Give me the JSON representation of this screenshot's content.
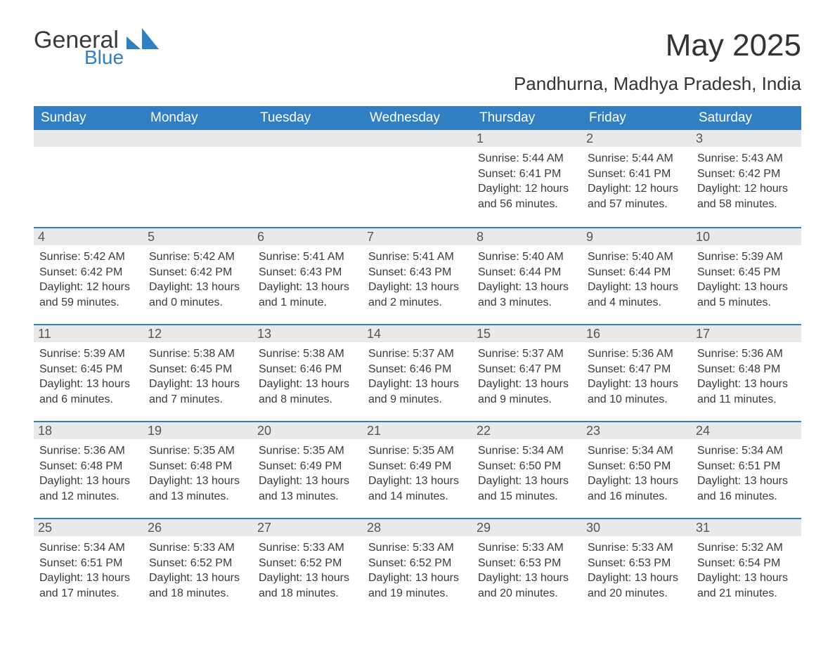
{
  "brand": {
    "word1": "General",
    "word2": "Blue"
  },
  "title": "May 2025",
  "location": "Pandhurna, Madhya Pradesh, India",
  "colors": {
    "header_bg": "#2f7fc2",
    "header_text": "#ffffff",
    "daynum_bg": "#e9e9e9",
    "daynum_text": "#555555",
    "body_text": "#3a3a3a",
    "divider": "#2f7fc2",
    "page_bg": "#ffffff",
    "logo_blue": "#2f7fc2",
    "logo_gray": "#3a3a3a"
  },
  "typography": {
    "title_fontsize": 44,
    "location_fontsize": 26,
    "dow_fontsize": 19,
    "daynum_fontsize": 18,
    "body_fontsize": 16,
    "font_family": "Arial"
  },
  "layout": {
    "columns": 7,
    "rows": 5,
    "leading_blanks": 4,
    "cell_min_height": 138
  },
  "dow": [
    "Sunday",
    "Monday",
    "Tuesday",
    "Wednesday",
    "Thursday",
    "Friday",
    "Saturday"
  ],
  "days": [
    {
      "n": "1",
      "sunrise": "Sunrise: 5:44 AM",
      "sunset": "Sunset: 6:41 PM",
      "daylight": "Daylight: 12 hours and 56 minutes."
    },
    {
      "n": "2",
      "sunrise": "Sunrise: 5:44 AM",
      "sunset": "Sunset: 6:41 PM",
      "daylight": "Daylight: 12 hours and 57 minutes."
    },
    {
      "n": "3",
      "sunrise": "Sunrise: 5:43 AM",
      "sunset": "Sunset: 6:42 PM",
      "daylight": "Daylight: 12 hours and 58 minutes."
    },
    {
      "n": "4",
      "sunrise": "Sunrise: 5:42 AM",
      "sunset": "Sunset: 6:42 PM",
      "daylight": "Daylight: 12 hours and 59 minutes."
    },
    {
      "n": "5",
      "sunrise": "Sunrise: 5:42 AM",
      "sunset": "Sunset: 6:42 PM",
      "daylight": "Daylight: 13 hours and 0 minutes."
    },
    {
      "n": "6",
      "sunrise": "Sunrise: 5:41 AM",
      "sunset": "Sunset: 6:43 PM",
      "daylight": "Daylight: 13 hours and 1 minute."
    },
    {
      "n": "7",
      "sunrise": "Sunrise: 5:41 AM",
      "sunset": "Sunset: 6:43 PM",
      "daylight": "Daylight: 13 hours and 2 minutes."
    },
    {
      "n": "8",
      "sunrise": "Sunrise: 5:40 AM",
      "sunset": "Sunset: 6:44 PM",
      "daylight": "Daylight: 13 hours and 3 minutes."
    },
    {
      "n": "9",
      "sunrise": "Sunrise: 5:40 AM",
      "sunset": "Sunset: 6:44 PM",
      "daylight": "Daylight: 13 hours and 4 minutes."
    },
    {
      "n": "10",
      "sunrise": "Sunrise: 5:39 AM",
      "sunset": "Sunset: 6:45 PM",
      "daylight": "Daylight: 13 hours and 5 minutes."
    },
    {
      "n": "11",
      "sunrise": "Sunrise: 5:39 AM",
      "sunset": "Sunset: 6:45 PM",
      "daylight": "Daylight: 13 hours and 6 minutes."
    },
    {
      "n": "12",
      "sunrise": "Sunrise: 5:38 AM",
      "sunset": "Sunset: 6:45 PM",
      "daylight": "Daylight: 13 hours and 7 minutes."
    },
    {
      "n": "13",
      "sunrise": "Sunrise: 5:38 AM",
      "sunset": "Sunset: 6:46 PM",
      "daylight": "Daylight: 13 hours and 8 minutes."
    },
    {
      "n": "14",
      "sunrise": "Sunrise: 5:37 AM",
      "sunset": "Sunset: 6:46 PM",
      "daylight": "Daylight: 13 hours and 9 minutes."
    },
    {
      "n": "15",
      "sunrise": "Sunrise: 5:37 AM",
      "sunset": "Sunset: 6:47 PM",
      "daylight": "Daylight: 13 hours and 9 minutes."
    },
    {
      "n": "16",
      "sunrise": "Sunrise: 5:36 AM",
      "sunset": "Sunset: 6:47 PM",
      "daylight": "Daylight: 13 hours and 10 minutes."
    },
    {
      "n": "17",
      "sunrise": "Sunrise: 5:36 AM",
      "sunset": "Sunset: 6:48 PM",
      "daylight": "Daylight: 13 hours and 11 minutes."
    },
    {
      "n": "18",
      "sunrise": "Sunrise: 5:36 AM",
      "sunset": "Sunset: 6:48 PM",
      "daylight": "Daylight: 13 hours and 12 minutes."
    },
    {
      "n": "19",
      "sunrise": "Sunrise: 5:35 AM",
      "sunset": "Sunset: 6:48 PM",
      "daylight": "Daylight: 13 hours and 13 minutes."
    },
    {
      "n": "20",
      "sunrise": "Sunrise: 5:35 AM",
      "sunset": "Sunset: 6:49 PM",
      "daylight": "Daylight: 13 hours and 13 minutes."
    },
    {
      "n": "21",
      "sunrise": "Sunrise: 5:35 AM",
      "sunset": "Sunset: 6:49 PM",
      "daylight": "Daylight: 13 hours and 14 minutes."
    },
    {
      "n": "22",
      "sunrise": "Sunrise: 5:34 AM",
      "sunset": "Sunset: 6:50 PM",
      "daylight": "Daylight: 13 hours and 15 minutes."
    },
    {
      "n": "23",
      "sunrise": "Sunrise: 5:34 AM",
      "sunset": "Sunset: 6:50 PM",
      "daylight": "Daylight: 13 hours and 16 minutes."
    },
    {
      "n": "24",
      "sunrise": "Sunrise: 5:34 AM",
      "sunset": "Sunset: 6:51 PM",
      "daylight": "Daylight: 13 hours and 16 minutes."
    },
    {
      "n": "25",
      "sunrise": "Sunrise: 5:34 AM",
      "sunset": "Sunset: 6:51 PM",
      "daylight": "Daylight: 13 hours and 17 minutes."
    },
    {
      "n": "26",
      "sunrise": "Sunrise: 5:33 AM",
      "sunset": "Sunset: 6:52 PM",
      "daylight": "Daylight: 13 hours and 18 minutes."
    },
    {
      "n": "27",
      "sunrise": "Sunrise: 5:33 AM",
      "sunset": "Sunset: 6:52 PM",
      "daylight": "Daylight: 13 hours and 18 minutes."
    },
    {
      "n": "28",
      "sunrise": "Sunrise: 5:33 AM",
      "sunset": "Sunset: 6:52 PM",
      "daylight": "Daylight: 13 hours and 19 minutes."
    },
    {
      "n": "29",
      "sunrise": "Sunrise: 5:33 AM",
      "sunset": "Sunset: 6:53 PM",
      "daylight": "Daylight: 13 hours and 20 minutes."
    },
    {
      "n": "30",
      "sunrise": "Sunrise: 5:33 AM",
      "sunset": "Sunset: 6:53 PM",
      "daylight": "Daylight: 13 hours and 20 minutes."
    },
    {
      "n": "31",
      "sunrise": "Sunrise: 5:32 AM",
      "sunset": "Sunset: 6:54 PM",
      "daylight": "Daylight: 13 hours and 21 minutes."
    }
  ]
}
